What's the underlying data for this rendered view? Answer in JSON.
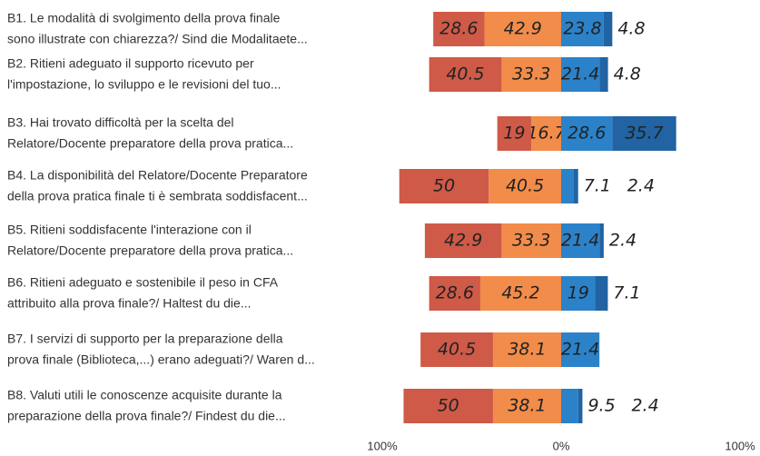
{
  "chart_data": {
    "type": "diverging-bar",
    "categories": [
      [
        "B1. Le modalità di svolgimento della prova finale",
        "sono illustrate con chiarezza?/ Sind die Modalitaete..."
      ],
      [
        "B2. Ritieni adeguato il supporto ricevuto per",
        "l'impostazione, lo sviluppo e le revisioni del tuo..."
      ],
      [
        "B3. Hai trovato difficoltà per la scelta del",
        "Relatore/Docente preparatore della prova pratica..."
      ],
      [
        "B4. La disponibilità del Relatore/Docente Preparatore",
        "della prova pratica finale ti è sembrata soddisfacent..."
      ],
      [
        "B5. Ritieni soddisfacente l'interazione con il",
        "Relatore/Docente preparatore della prova pratica..."
      ],
      [
        "B6. Ritieni adeguato e sostenibile il peso in CFA",
        "attribuito alla prova finale?/ Haltest du die..."
      ],
      [
        "B7. I servizi di supporto per la preparazione della",
        "prova finale (Biblioteca,...) erano adeguati?/ Waren d..."
      ],
      [
        "B8. Valuti utili le conoscenze acquisite durante la",
        "preparazione della prova finale?/ Findest du die..."
      ]
    ],
    "series": [
      {
        "color": "#cf5a48",
        "side": "left",
        "values": [
          28.6,
          40.5,
          19,
          50,
          42.9,
          28.6,
          40.5,
          50
        ]
      },
      {
        "color": "#f28c4a",
        "side": "left",
        "values": [
          42.9,
          33.3,
          16.7,
          40.5,
          33.3,
          45.2,
          38.1,
          38.1
        ]
      },
      {
        "color": "#2b82c9",
        "side": "right",
        "values": [
          23.8,
          21.4,
          28.6,
          7.1,
          21.4,
          19,
          21.4,
          9.5
        ]
      },
      {
        "color": "#2163a3",
        "side": "right",
        "values": [
          4.8,
          4.8,
          35.7,
          2.4,
          2.4,
          7.1,
          null,
          2.4
        ]
      }
    ],
    "xlim": [
      -100,
      100
    ],
    "xticks": [
      {
        "value": -100,
        "label": "100%"
      },
      {
        "value": 0,
        "label": "0%"
      },
      {
        "value": 100,
        "label": "100%"
      }
    ]
  }
}
